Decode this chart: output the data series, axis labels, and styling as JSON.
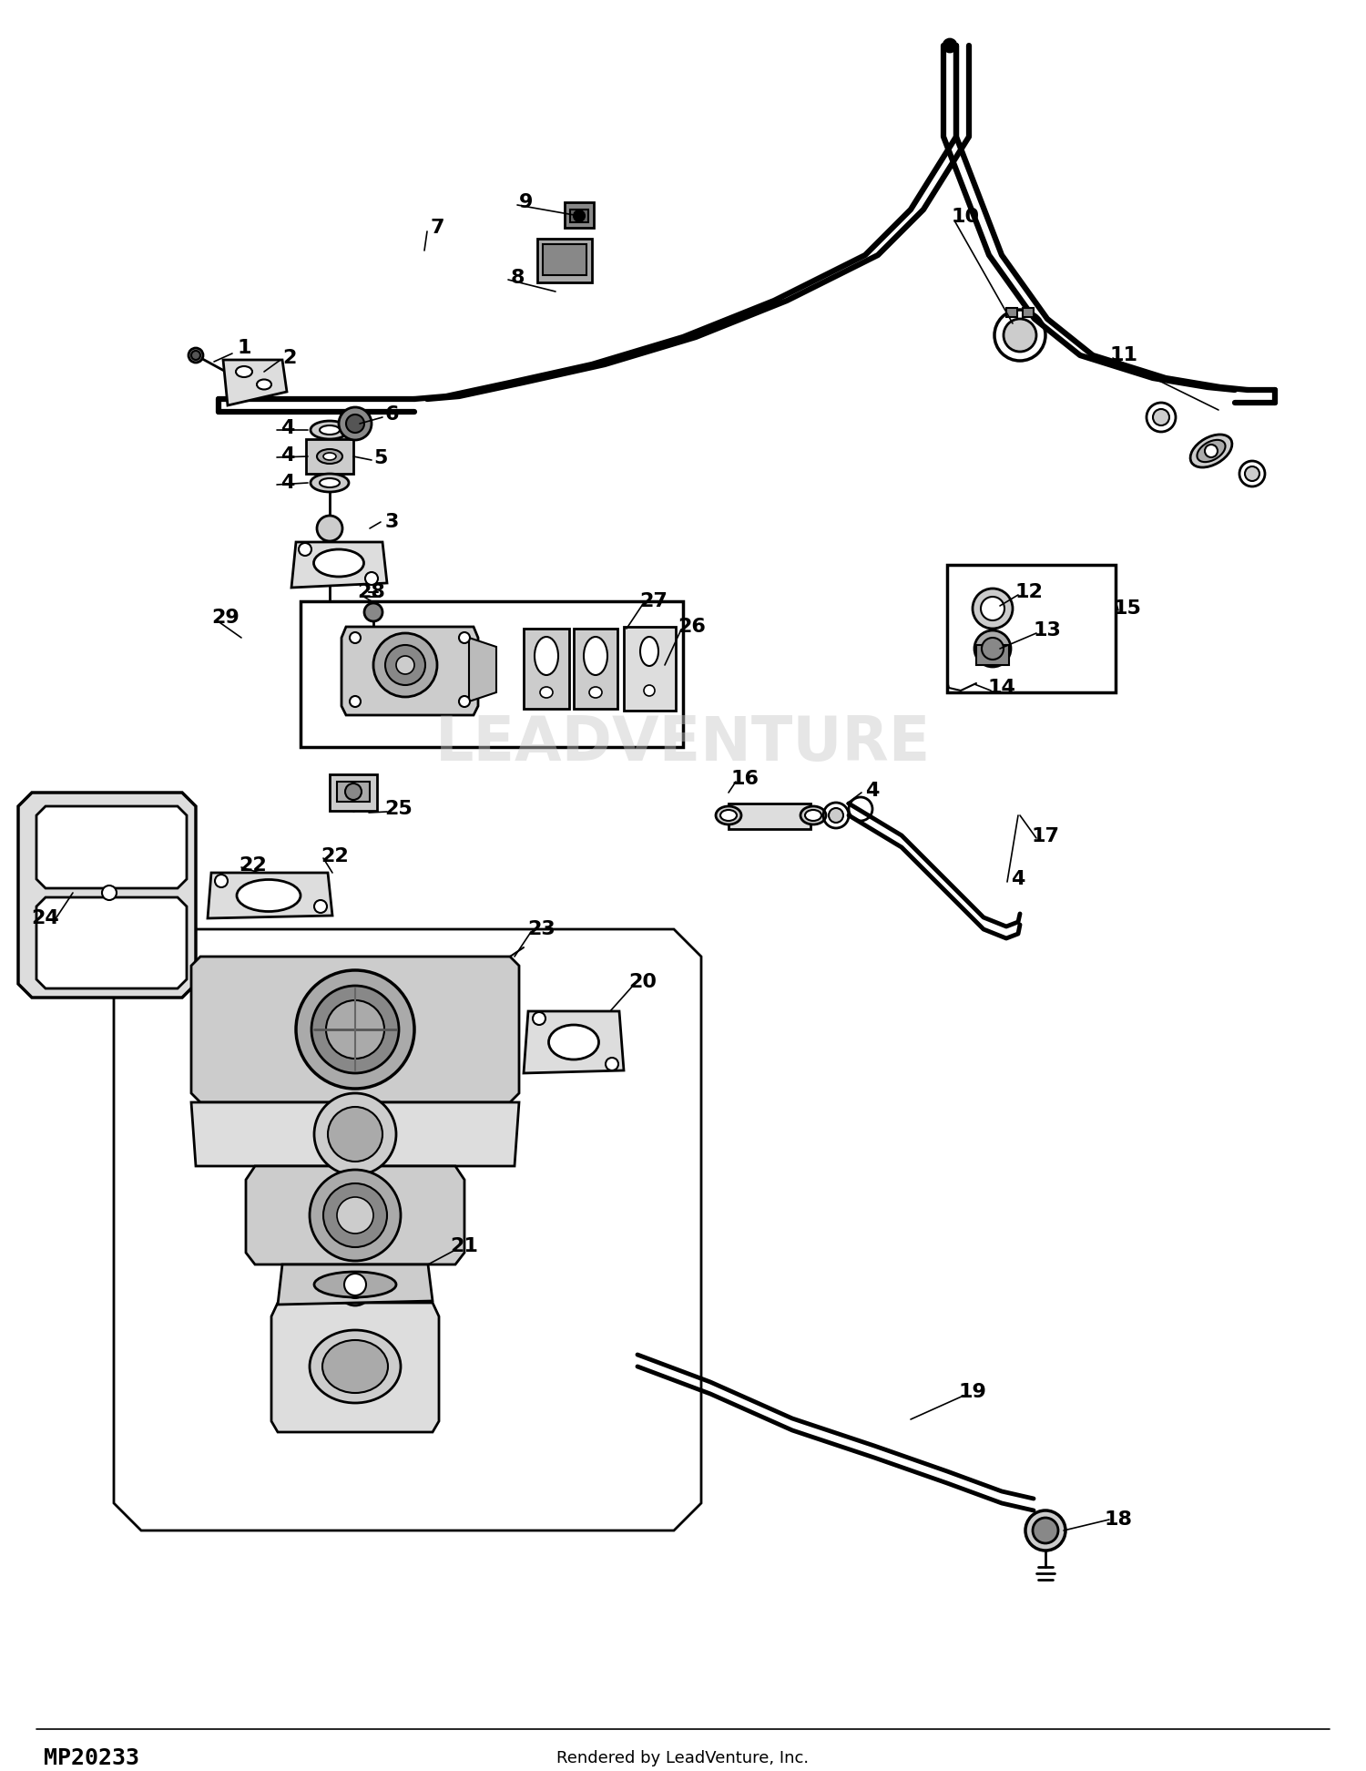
{
  "footer_left": "MP20233",
  "footer_center": "Rendered by LeadVenture, Inc.",
  "background_color": "#ffffff",
  "watermark": "LEADVENTURE",
  "fig_w": 15.0,
  "fig_h": 19.44,
  "dpi": 100
}
